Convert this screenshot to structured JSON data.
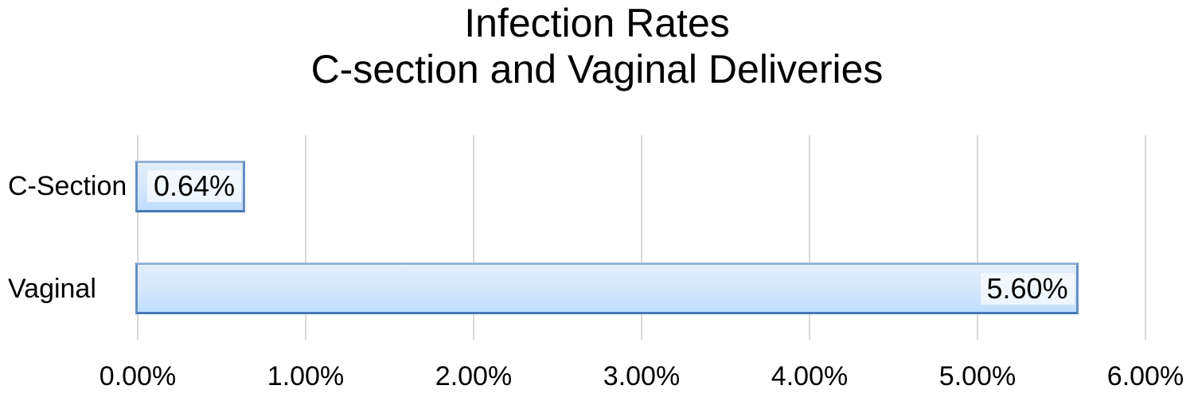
{
  "title": {
    "line1": "Infection Rates",
    "line2": "C-section and Vaginal Deliveries"
  },
  "chart_data": {
    "type": "bar",
    "orientation": "horizontal",
    "title": "Infection Rates — C-section and Vaginal Deliveries",
    "categories": [
      "C-Section",
      "Vaginal"
    ],
    "values": [
      0.64,
      5.6
    ],
    "value_labels": [
      "0.64%",
      "5.60%"
    ],
    "xlabel": "",
    "ylabel": "",
    "xlim": [
      0,
      6
    ],
    "x_ticks": [
      {
        "value": 0,
        "label": "0.00%"
      },
      {
        "value": 1,
        "label": "1.00%"
      },
      {
        "value": 2,
        "label": "2.00%"
      },
      {
        "value": 3,
        "label": "3.00%"
      },
      {
        "value": 4,
        "label": "4.00%"
      },
      {
        "value": 5,
        "label": "5.00%"
      },
      {
        "value": 6,
        "label": "6.00%"
      }
    ],
    "grid": "vertical",
    "legend": "none",
    "data_label_position": "inside-end"
  },
  "colors": {
    "background": "#ffffff",
    "text": "#000000",
    "gridline": "#d9d9d9",
    "bar_fill_top": "#e0edfb",
    "bar_fill_mid": "#d8e8fa",
    "bar_fill_bottom": "#bfdeff",
    "bar_border_side": "#6690c4",
    "bar_border_top": "#92b2d8",
    "bar_border_bottom": "#4a79b5",
    "data_label_bg": "rgba(255,255,255,0.66)"
  }
}
